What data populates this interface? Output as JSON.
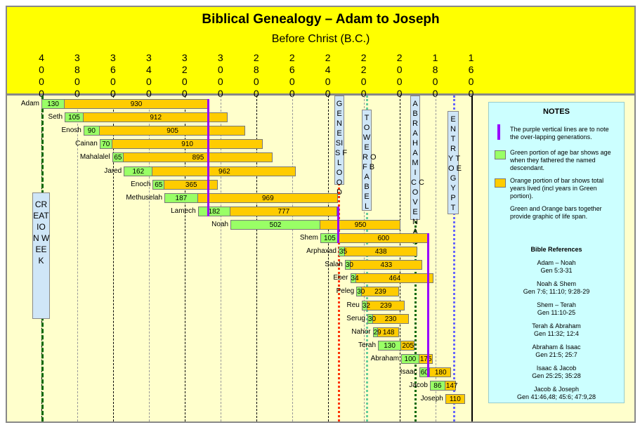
{
  "chart_data": {
    "type": "bar",
    "title": "Biblical Genealogy – Adam to Joseph",
    "subtitle": "Before Christ (B.C.)",
    "xlim_bc": [
      4000,
      1600
    ],
    "ticks": [
      "4000",
      "3800",
      "3600",
      "3400",
      "3200",
      "3000",
      "2800",
      "2600",
      "2400",
      "2200",
      "2000",
      "1800",
      "1600"
    ],
    "people": [
      {
        "name": "Adam",
        "start_am": 0,
        "fathered": 130,
        "lived": 930
      },
      {
        "name": "Seth",
        "start_am": 130,
        "fathered": 105,
        "lived": 912
      },
      {
        "name": "Enosh",
        "start_am": 235,
        "fathered": 90,
        "lived": 905
      },
      {
        "name": "Cainan",
        "start_am": 325,
        "fathered": 70,
        "lived": 910
      },
      {
        "name": "Mahalalel",
        "start_am": 395,
        "fathered": 65,
        "lived": 895
      },
      {
        "name": "Jared",
        "start_am": 460,
        "fathered": 162,
        "lived": 962
      },
      {
        "name": "Enoch",
        "start_am": 622,
        "fathered": 65,
        "lived": 365
      },
      {
        "name": "Methuselah",
        "start_am": 687,
        "fathered": 187,
        "lived": 969
      },
      {
        "name": "Lamech",
        "start_am": 874,
        "fathered": 182,
        "lived": 777
      },
      {
        "name": "Noah",
        "start_am": 1056,
        "fathered": 502,
        "lived": 950
      },
      {
        "name": "Shem",
        "start_am": 1558,
        "fathered": 105,
        "lived": 600
      },
      {
        "name": "Arphaxad",
        "start_am": 1660,
        "fathered": 35,
        "lived": 438
      },
      {
        "name": "Salah",
        "start_am": 1695,
        "fathered": 30,
        "lived": 433
      },
      {
        "name": "Eber",
        "start_am": 1725,
        "fathered": 34,
        "lived": 464
      },
      {
        "name": "Peleg",
        "start_am": 1759,
        "fathered": 30,
        "lived": 239
      },
      {
        "name": "Reu",
        "start_am": 1789,
        "fathered": 32,
        "lived": 239
      },
      {
        "name": "Serug",
        "start_am": 1821,
        "fathered": 30,
        "lived": 230
      },
      {
        "name": "Nahor",
        "start_am": 1851,
        "fathered": 29,
        "lived": 148
      },
      {
        "name": "Terah",
        "start_am": 1880,
        "fathered": 130,
        "lived": 205
      },
      {
        "name": "Abraham",
        "start_am": 2010,
        "fathered": 100,
        "lived": 175
      },
      {
        "name": "Isaac",
        "start_am": 2110,
        "fathered": 60,
        "lived": 180
      },
      {
        "name": "Jacob",
        "start_am": 2170,
        "fathered": 86,
        "lived": 147
      },
      {
        "name": "Joseph",
        "start_am": 2256,
        "fathered": 0,
        "lived": 110
      }
    ],
    "events": [
      {
        "label": "CREATION WEEK",
        "am": 0,
        "color": "#006600"
      },
      {
        "label": "GENESIS FLOOD",
        "am": 1656,
        "color": "#ff3300"
      },
      {
        "label": "TOWER OF BABEL",
        "am": 1813,
        "color": "#66cc99"
      },
      {
        "label": "ABRAHAMIC COVENANT",
        "am": 2083,
        "color": "#006600"
      },
      {
        "label": "ENTRY TO EGYPT",
        "am": 2298,
        "color": "#6666ff"
      }
    ],
    "overlap_lines_am": [
      {
        "am": 930,
        "from": 0,
        "to": 8
      },
      {
        "am": 1656,
        "from": 8,
        "to": 10
      },
      {
        "am": 2158,
        "from": 10,
        "to": 20
      }
    ]
  },
  "notes": {
    "title": "NOTES",
    "purple": "The purple vertical lines are to note the over-lapping generations.",
    "green": "Green portion of age bar shows age when they fathered the named descendant.",
    "orange": "Orange portion of bar shows total years lived (incl years in Green portion).",
    "together": "Green and Orange bars together provide graphic of life span.",
    "refs_title": "Bible References",
    "refs": [
      [
        "Adam – Noah",
        "Gen 5:3-31"
      ],
      [
        "Noah & Shem",
        "Gen 7:6; 11:10; 9:28-29"
      ],
      [
        "Shem – Terah",
        "Gen 11:10-25"
      ],
      [
        "Terah & Abraham",
        "Gen 11:32; 12:4"
      ],
      [
        "Abraham & Isaac",
        "Gen 21:5; 25:7"
      ],
      [
        "Isaac & Jacob",
        "Gen 25:25; 35:28"
      ],
      [
        "Jacob & Joseph",
        "Gen 41:46,48; 45:6; 47:9,28"
      ]
    ]
  },
  "colors": {
    "green": "#99ff66",
    "orange": "#ffcc00",
    "purple": "#9900ff",
    "header": "#ffff00"
  }
}
